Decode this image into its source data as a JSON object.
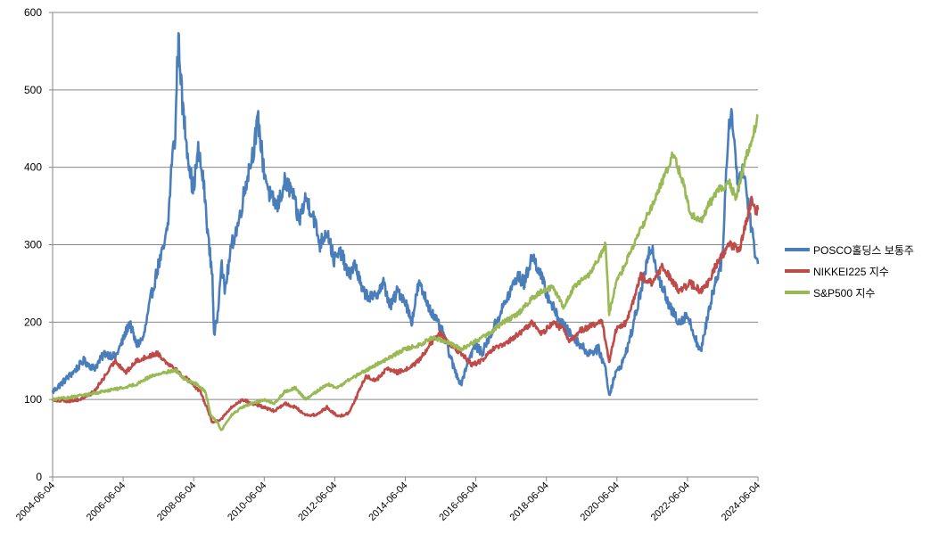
{
  "chart_data": {
    "type": "line",
    "title": "",
    "xlabel": "",
    "ylabel": "",
    "ylim": [
      0,
      600
    ],
    "y_ticks": [
      "0",
      "100",
      "200",
      "300",
      "400",
      "500",
      "600"
    ],
    "x_ticks": [
      "2004-06-04",
      "2006-06-04",
      "2008-06-04",
      "2010-06-04",
      "2012-06-04",
      "2014-06-04",
      "2016-06-04",
      "2018-06-04",
      "2020-06-04",
      "2022-06-04",
      "2024-06-04"
    ],
    "x_range": [
      2004.42,
      2024.42
    ],
    "grid": true,
    "legend_position": "right",
    "series": [
      {
        "name": "POSCO홀딩스 보통주",
        "color": "#4A7EBB",
        "points": [
          [
            2004.42,
            110
          ],
          [
            2004.7,
            122
          ],
          [
            2005.0,
            135
          ],
          [
            2005.3,
            150
          ],
          [
            2005.6,
            140
          ],
          [
            2005.9,
            160
          ],
          [
            2006.2,
            155
          ],
          [
            2006.4,
            175
          ],
          [
            2006.6,
            200
          ],
          [
            2006.8,
            170
          ],
          [
            2007.0,
            180
          ],
          [
            2007.2,
            230
          ],
          [
            2007.4,
            270
          ],
          [
            2007.6,
            300
          ],
          [
            2007.7,
            330
          ],
          [
            2007.8,
            410
          ],
          [
            2007.9,
            440
          ],
          [
            2007.95,
            530
          ],
          [
            2008.0,
            565
          ],
          [
            2008.1,
            480
          ],
          [
            2008.25,
            420
          ],
          [
            2008.4,
            370
          ],
          [
            2008.55,
            420
          ],
          [
            2008.7,
            380
          ],
          [
            2008.85,
            300
          ],
          [
            2008.95,
            260
          ],
          [
            2009.0,
            180
          ],
          [
            2009.1,
            210
          ],
          [
            2009.2,
            280
          ],
          [
            2009.3,
            240
          ],
          [
            2009.5,
            300
          ],
          [
            2009.7,
            330
          ],
          [
            2009.9,
            380
          ],
          [
            2010.1,
            420
          ],
          [
            2010.25,
            460
          ],
          [
            2010.4,
            400
          ],
          [
            2010.6,
            360
          ],
          [
            2010.8,
            350
          ],
          [
            2011.0,
            380
          ],
          [
            2011.2,
            370
          ],
          [
            2011.4,
            330
          ],
          [
            2011.6,
            360
          ],
          [
            2011.8,
            340
          ],
          [
            2012.0,
            300
          ],
          [
            2012.2,
            320
          ],
          [
            2012.4,
            280
          ],
          [
            2012.6,
            290
          ],
          [
            2012.8,
            260
          ],
          [
            2013.0,
            275
          ],
          [
            2013.2,
            240
          ],
          [
            2013.5,
            230
          ],
          [
            2013.8,
            250
          ],
          [
            2014.0,
            220
          ],
          [
            2014.2,
            240
          ],
          [
            2014.4,
            230
          ],
          [
            2014.6,
            200
          ],
          [
            2014.8,
            250
          ],
          [
            2015.0,
            230
          ],
          [
            2015.2,
            210
          ],
          [
            2015.5,
            185
          ],
          [
            2015.8,
            140
          ],
          [
            2016.0,
            120
          ],
          [
            2016.2,
            150
          ],
          [
            2016.4,
            170
          ],
          [
            2016.6,
            160
          ],
          [
            2016.8,
            180
          ],
          [
            2017.0,
            200
          ],
          [
            2017.3,
            230
          ],
          [
            2017.6,
            260
          ],
          [
            2017.8,
            250
          ],
          [
            2018.0,
            285
          ],
          [
            2018.2,
            270
          ],
          [
            2018.4,
            240
          ],
          [
            2018.7,
            210
          ],
          [
            2019.0,
            190
          ],
          [
            2019.3,
            175
          ],
          [
            2019.6,
            160
          ],
          [
            2019.9,
            165
          ],
          [
            2020.1,
            140
          ],
          [
            2020.2,
            105
          ],
          [
            2020.35,
            130
          ],
          [
            2020.6,
            150
          ],
          [
            2020.8,
            180
          ],
          [
            2021.0,
            220
          ],
          [
            2021.2,
            260
          ],
          [
            2021.4,
            300
          ],
          [
            2021.6,
            260
          ],
          [
            2021.9,
            220
          ],
          [
            2022.2,
            200
          ],
          [
            2022.4,
            210
          ],
          [
            2022.6,
            185
          ],
          [
            2022.8,
            160
          ],
          [
            2023.0,
            210
          ],
          [
            2023.2,
            250
          ],
          [
            2023.4,
            280
          ],
          [
            2023.55,
            420
          ],
          [
            2023.65,
            480
          ],
          [
            2023.75,
            430
          ],
          [
            2023.85,
            380
          ],
          [
            2024.0,
            400
          ],
          [
            2024.15,
            350
          ],
          [
            2024.3,
            300
          ],
          [
            2024.42,
            275
          ]
        ]
      },
      {
        "name": "NIKKEI225 지수",
        "color": "#BE4B48",
        "points": [
          [
            2004.42,
            100
          ],
          [
            2004.8,
            98
          ],
          [
            2005.2,
            100
          ],
          [
            2005.6,
            110
          ],
          [
            2005.9,
            130
          ],
          [
            2006.2,
            150
          ],
          [
            2006.5,
            135
          ],
          [
            2006.8,
            150
          ],
          [
            2007.1,
            155
          ],
          [
            2007.4,
            160
          ],
          [
            2007.6,
            150
          ],
          [
            2007.9,
            140
          ],
          [
            2008.1,
            130
          ],
          [
            2008.3,
            125
          ],
          [
            2008.6,
            110
          ],
          [
            2008.8,
            90
          ],
          [
            2008.95,
            70
          ],
          [
            2009.2,
            75
          ],
          [
            2009.5,
            90
          ],
          [
            2009.8,
            100
          ],
          [
            2010.1,
            95
          ],
          [
            2010.4,
            90
          ],
          [
            2010.7,
            85
          ],
          [
            2011.0,
            95
          ],
          [
            2011.3,
            90
          ],
          [
            2011.6,
            80
          ],
          [
            2011.9,
            80
          ],
          [
            2012.2,
            90
          ],
          [
            2012.5,
            78
          ],
          [
            2012.8,
            82
          ],
          [
            2013.0,
            100
          ],
          [
            2013.3,
            130
          ],
          [
            2013.6,
            125
          ],
          [
            2013.9,
            140
          ],
          [
            2014.2,
            135
          ],
          [
            2014.5,
            140
          ],
          [
            2014.8,
            150
          ],
          [
            2015.1,
            170
          ],
          [
            2015.4,
            185
          ],
          [
            2015.7,
            170
          ],
          [
            2016.0,
            160
          ],
          [
            2016.3,
            145
          ],
          [
            2016.6,
            150
          ],
          [
            2016.9,
            165
          ],
          [
            2017.2,
            170
          ],
          [
            2017.5,
            180
          ],
          [
            2017.8,
            190
          ],
          [
            2018.0,
            200
          ],
          [
            2018.3,
            185
          ],
          [
            2018.6,
            200
          ],
          [
            2018.9,
            190
          ],
          [
            2019.1,
            175
          ],
          [
            2019.4,
            190
          ],
          [
            2019.7,
            195
          ],
          [
            2020.0,
            200
          ],
          [
            2020.2,
            150
          ],
          [
            2020.4,
            190
          ],
          [
            2020.7,
            200
          ],
          [
            2020.9,
            230
          ],
          [
            2021.1,
            260
          ],
          [
            2021.4,
            250
          ],
          [
            2021.7,
            270
          ],
          [
            2021.9,
            260
          ],
          [
            2022.2,
            240
          ],
          [
            2022.5,
            250
          ],
          [
            2022.8,
            240
          ],
          [
            2023.0,
            250
          ],
          [
            2023.3,
            280
          ],
          [
            2023.6,
            300
          ],
          [
            2023.9,
            295
          ],
          [
            2024.1,
            330
          ],
          [
            2024.25,
            360
          ],
          [
            2024.35,
            340
          ],
          [
            2024.42,
            345
          ]
        ]
      },
      {
        "name": "S&P500 지수",
        "color": "#98B954",
        "points": [
          [
            2004.42,
            100
          ],
          [
            2004.8,
            102
          ],
          [
            2005.2,
            105
          ],
          [
            2005.6,
            108
          ],
          [
            2006.0,
            112
          ],
          [
            2006.4,
            115
          ],
          [
            2006.8,
            120
          ],
          [
            2007.2,
            130
          ],
          [
            2007.6,
            135
          ],
          [
            2007.9,
            138
          ],
          [
            2008.2,
            125
          ],
          [
            2008.5,
            120
          ],
          [
            2008.75,
            110
          ],
          [
            2008.9,
            80
          ],
          [
            2009.1,
            70
          ],
          [
            2009.2,
            60
          ],
          [
            2009.5,
            80
          ],
          [
            2009.8,
            90
          ],
          [
            2010.1,
            95
          ],
          [
            2010.4,
            100
          ],
          [
            2010.7,
            95
          ],
          [
            2011.0,
            110
          ],
          [
            2011.3,
            115
          ],
          [
            2011.6,
            100
          ],
          [
            2011.9,
            110
          ],
          [
            2012.2,
            120
          ],
          [
            2012.5,
            115
          ],
          [
            2012.8,
            125
          ],
          [
            2013.2,
            135
          ],
          [
            2013.6,
            145
          ],
          [
            2014.0,
            155
          ],
          [
            2014.4,
            165
          ],
          [
            2014.8,
            170
          ],
          [
            2015.2,
            180
          ],
          [
            2015.6,
            175
          ],
          [
            2016.0,
            165
          ],
          [
            2016.4,
            175
          ],
          [
            2016.8,
            185
          ],
          [
            2017.2,
            200
          ],
          [
            2017.6,
            210
          ],
          [
            2018.0,
            230
          ],
          [
            2018.3,
            240
          ],
          [
            2018.6,
            245
          ],
          [
            2018.9,
            220
          ],
          [
            2019.2,
            245
          ],
          [
            2019.6,
            260
          ],
          [
            2019.9,
            280
          ],
          [
            2020.1,
            300
          ],
          [
            2020.2,
            210
          ],
          [
            2020.4,
            250
          ],
          [
            2020.7,
            280
          ],
          [
            2020.9,
            300
          ],
          [
            2021.2,
            330
          ],
          [
            2021.5,
            360
          ],
          [
            2021.8,
            390
          ],
          [
            2022.0,
            420
          ],
          [
            2022.3,
            380
          ],
          [
            2022.5,
            340
          ],
          [
            2022.8,
            330
          ],
          [
            2023.0,
            350
          ],
          [
            2023.3,
            370
          ],
          [
            2023.6,
            380
          ],
          [
            2023.8,
            360
          ],
          [
            2024.0,
            400
          ],
          [
            2024.2,
            430
          ],
          [
            2024.35,
            455
          ],
          [
            2024.42,
            468
          ]
        ]
      }
    ]
  }
}
